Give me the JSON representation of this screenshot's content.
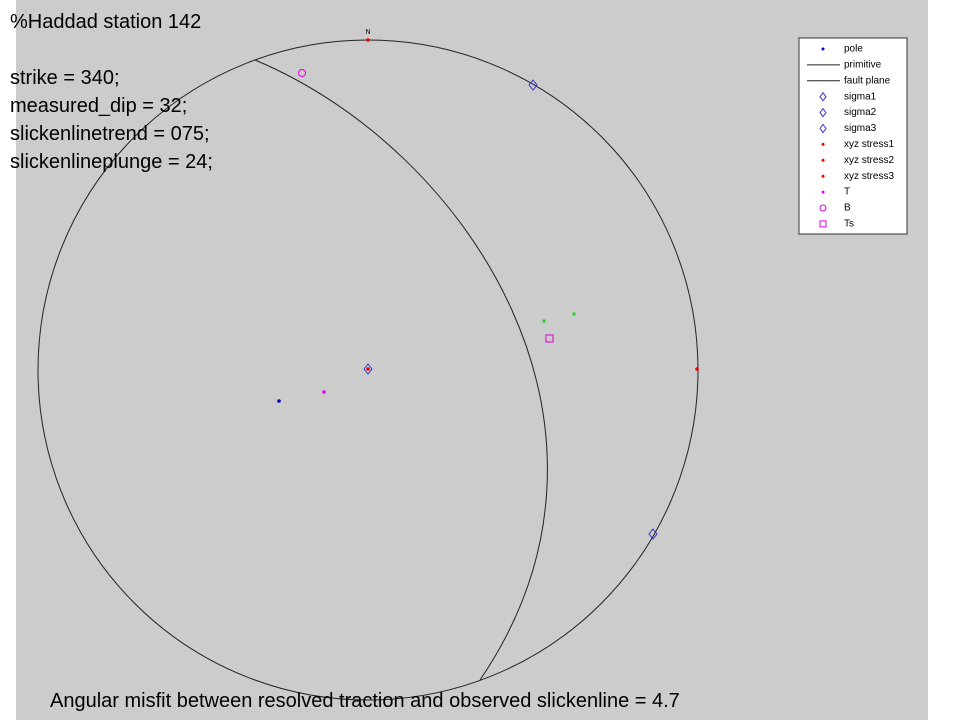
{
  "header": {
    "lines": [
      "%Haddad station 142",
      "strike = 340;",
      "measured_dip = 32;",
      "slickenlinetrend = 075;",
      "slickenlineplunge = 24;"
    ]
  },
  "north_label": "N",
  "legend": {
    "entries": [
      "pole",
      "primitive",
      "fault plane",
      "sigma1",
      "sigma2",
      "sigma3",
      "xyz stress1",
      "xyz stress2",
      "xyz stress3",
      "T",
      "B",
      "Ts"
    ]
  },
  "footer": "Angular misfit between resolved traction and observed slickenline = 4.7"
}
